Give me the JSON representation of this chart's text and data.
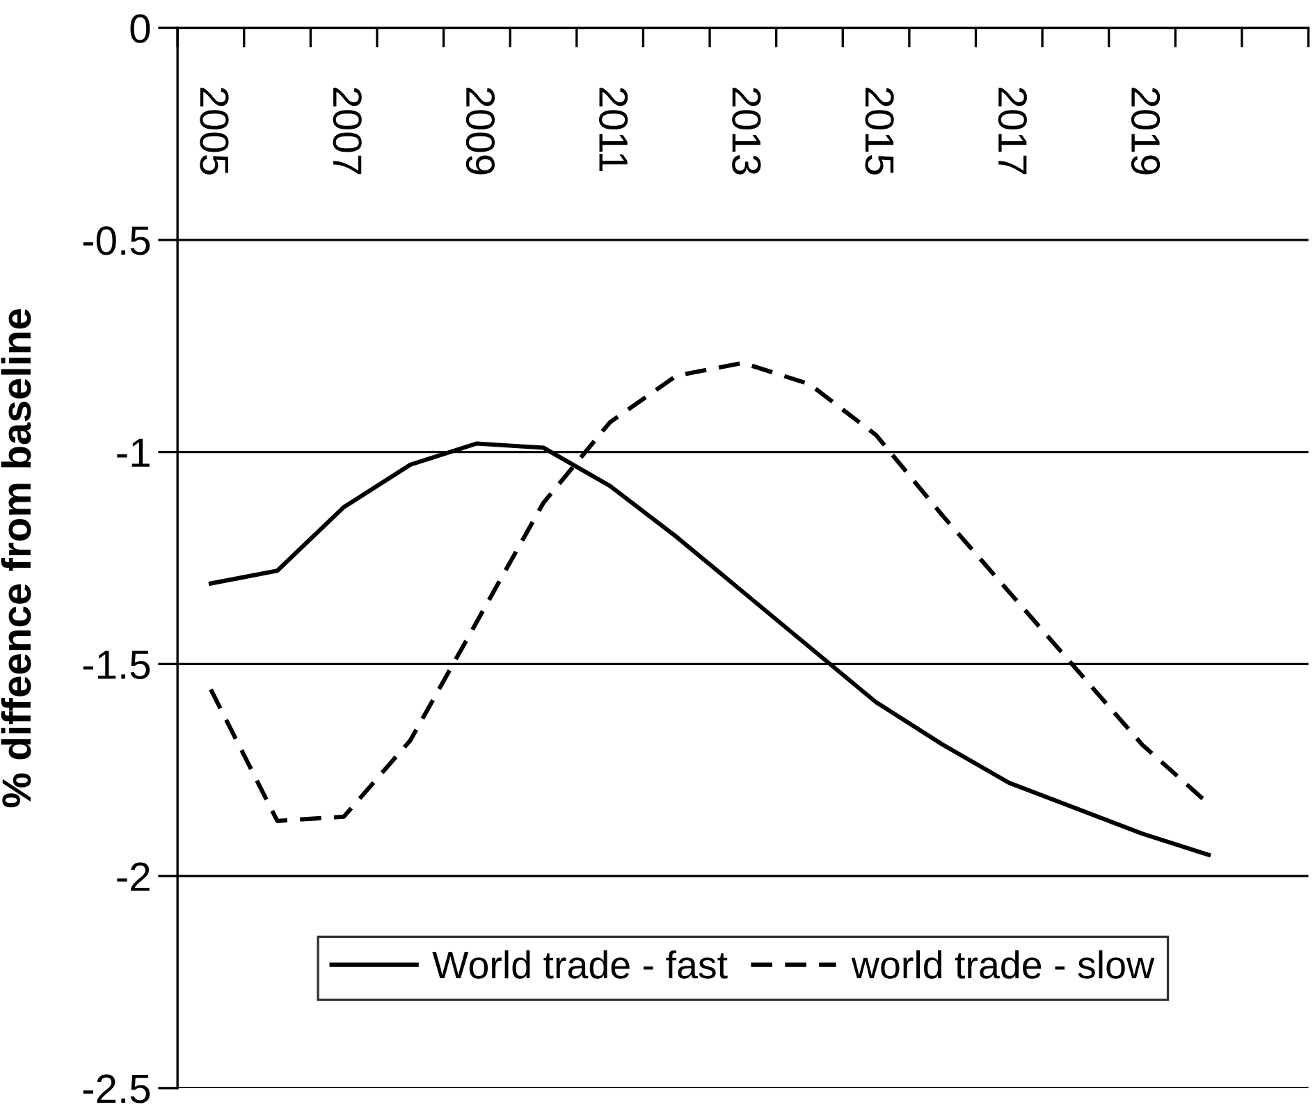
{
  "chart_data": {
    "type": "line",
    "ylabel": "% diffeence from baseline",
    "categories": [
      "2005",
      null,
      "2007",
      null,
      "2009",
      null,
      "2011",
      null,
      "2013",
      null,
      "2015",
      null,
      "2017",
      null,
      "2019",
      null,
      null
    ],
    "series": [
      {
        "name": "World trade - fast",
        "color": "#000000",
        "line_style": "solid",
        "values": [
          -1.31,
          -1.28,
          -1.13,
          -1.03,
          -0.98,
          -0.99,
          -1.08,
          -1.2,
          -1.33,
          -1.46,
          -1.59,
          -1.69,
          -1.78,
          -1.84,
          -1.9,
          -1.95,
          null
        ]
      },
      {
        "name": "world trade - slow",
        "color": "#000000",
        "line_style": "dashed",
        "values": [
          -1.56,
          -1.87,
          -1.86,
          -1.68,
          -1.4,
          -1.12,
          -0.93,
          -0.82,
          -0.79,
          -0.84,
          -0.96,
          -1.15,
          -1.33,
          -1.51,
          -1.69,
          -1.83,
          null
        ]
      }
    ],
    "ylim": [
      -2.5,
      0
    ],
    "yticks": [
      0,
      -0.5,
      -1,
      -1.5,
      -2,
      -2.5
    ],
    "grid": "y",
    "legend": "bottom",
    "marker": "none"
  }
}
